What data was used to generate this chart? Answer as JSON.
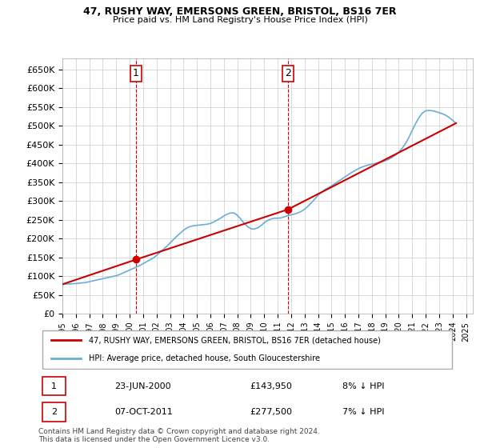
{
  "title": "47, RUSHY WAY, EMERSONS GREEN, BRISTOL, BS16 7ER",
  "subtitle": "Price paid vs. HM Land Registry's House Price Index (HPI)",
  "ylim": [
    0,
    680000
  ],
  "yticks": [
    0,
    50000,
    100000,
    150000,
    200000,
    250000,
    300000,
    350000,
    400000,
    450000,
    500000,
    550000,
    600000,
    650000
  ],
  "ytick_labels": [
    "£0",
    "£50K",
    "£100K",
    "£150K",
    "£200K",
    "£250K",
    "£300K",
    "£350K",
    "£400K",
    "£450K",
    "£500K",
    "£550K",
    "£600K",
    "£650K"
  ],
  "hpi_color": "#6aaed6",
  "price_color": "#cc0000",
  "marker_color": "#cc0000",
  "sale1_x": 2000.47,
  "sale1_y": 143950,
  "sale1_label": "1",
  "sale2_x": 2011.77,
  "sale2_y": 277500,
  "sale2_label": "2",
  "vline1_x": 2000.47,
  "vline2_x": 2011.77,
  "legend_line1": "47, RUSHY WAY, EMERSONS GREEN, BRISTOL, BS16 7ER (detached house)",
  "legend_line2": "HPI: Average price, detached house, South Gloucestershire",
  "table_row1_num": "1",
  "table_row1_date": "23-JUN-2000",
  "table_row1_price": "£143,950",
  "table_row1_hpi": "8% ↓ HPI",
  "table_row2_num": "2",
  "table_row2_date": "07-OCT-2011",
  "table_row2_price": "£277,500",
  "table_row2_hpi": "7% ↓ HPI",
  "footnote": "Contains HM Land Registry data © Crown copyright and database right 2024.\nThis data is licensed under the Open Government Licence v3.0.",
  "bg_color": "#ffffff",
  "grid_color": "#cccccc",
  "hpi_data_x": [
    1995,
    1995.25,
    1995.5,
    1995.75,
    1996,
    1996.25,
    1996.5,
    1996.75,
    1997,
    1997.25,
    1997.5,
    1997.75,
    1998,
    1998.25,
    1998.5,
    1998.75,
    1999,
    1999.25,
    1999.5,
    1999.75,
    2000,
    2000.25,
    2000.5,
    2000.75,
    2001,
    2001.25,
    2001.5,
    2001.75,
    2002,
    2002.25,
    2002.5,
    2002.75,
    2003,
    2003.25,
    2003.5,
    2003.75,
    2004,
    2004.25,
    2004.5,
    2004.75,
    2005,
    2005.25,
    2005.5,
    2005.75,
    2006,
    2006.25,
    2006.5,
    2006.75,
    2007,
    2007.25,
    2007.5,
    2007.75,
    2008,
    2008.25,
    2008.5,
    2008.75,
    2009,
    2009.25,
    2009.5,
    2009.75,
    2010,
    2010.25,
    2010.5,
    2010.75,
    2011,
    2011.25,
    2011.5,
    2011.75,
    2012,
    2012.25,
    2012.5,
    2012.75,
    2013,
    2013.25,
    2013.5,
    2013.75,
    2014,
    2014.25,
    2014.5,
    2014.75,
    2015,
    2015.25,
    2015.5,
    2015.75,
    2016,
    2016.25,
    2016.5,
    2016.75,
    2017,
    2017.25,
    2017.5,
    2017.75,
    2018,
    2018.25,
    2018.5,
    2018.75,
    2019,
    2019.25,
    2019.5,
    2019.75,
    2020,
    2020.25,
    2020.5,
    2020.75,
    2021,
    2021.25,
    2021.5,
    2021.75,
    2022,
    2022.25,
    2022.5,
    2022.75,
    2023,
    2023.25,
    2023.5,
    2023.75,
    2024,
    2024.25
  ],
  "hpi_data_y": [
    78000,
    78500,
    79000,
    79500,
    80000,
    81000,
    82000,
    83000,
    85000,
    87000,
    89000,
    91000,
    93000,
    95000,
    97000,
    99000,
    101000,
    104000,
    108000,
    112000,
    116000,
    120000,
    124000,
    128000,
    133000,
    138000,
    143000,
    148000,
    155000,
    163000,
    171000,
    179000,
    188000,
    197000,
    206000,
    214000,
    222000,
    228000,
    232000,
    234000,
    235000,
    236000,
    237000,
    238000,
    240000,
    244000,
    249000,
    254000,
    260000,
    265000,
    268000,
    268000,
    262000,
    252000,
    241000,
    232000,
    226000,
    225000,
    228000,
    234000,
    242000,
    248000,
    252000,
    254000,
    254000,
    255000,
    258000,
    261000,
    263000,
    265000,
    268000,
    272000,
    278000,
    286000,
    295000,
    305000,
    315000,
    323000,
    330000,
    335000,
    340000,
    346000,
    352000,
    358000,
    364000,
    370000,
    376000,
    381000,
    386000,
    390000,
    393000,
    396000,
    398000,
    400000,
    402000,
    404000,
    407000,
    411000,
    416000,
    422000,
    430000,
    440000,
    453000,
    469000,
    488000,
    506000,
    522000,
    534000,
    540000,
    541000,
    540000,
    538000,
    535000,
    532000,
    528000,
    522000,
    515000,
    507000
  ],
  "price_data_x": [
    1995,
    2000.47,
    2011.77,
    2024.25
  ],
  "price_data_y": [
    78000,
    143950,
    277500,
    507000
  ],
  "xlim": [
    1995,
    2025.5
  ]
}
